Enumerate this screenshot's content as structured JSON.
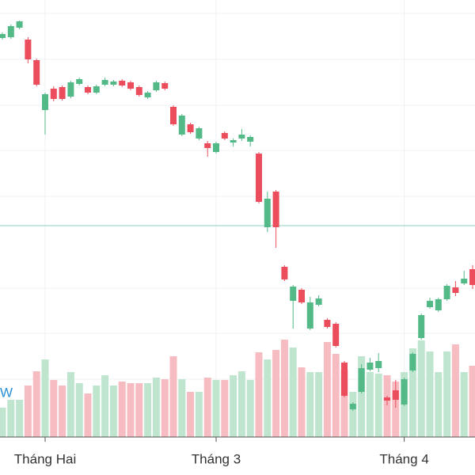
{
  "chart_data": {
    "type": "candlestick",
    "annotation": "W",
    "categories": [
      null,
      null,
      null,
      null,
      null,
      "Tháng Hai",
      null,
      null,
      null,
      null,
      null,
      null,
      null,
      null,
      null,
      null,
      null,
      null,
      null,
      null,
      null,
      null,
      null,
      null,
      null,
      "Tháng 3",
      null,
      null,
      null,
      null,
      null,
      null,
      null,
      null,
      null,
      null,
      null,
      null,
      null,
      null,
      null,
      null,
      null,
      null,
      null,
      null,
      null,
      "Tháng 4",
      null,
      null,
      null,
      null,
      null,
      null,
      null,
      null
    ],
    "open": [
      512,
      513,
      525,
      510,
      484,
      421,
      448,
      450,
      438,
      454,
      450,
      443,
      453,
      453,
      458,
      456,
      450,
      437,
      446,
      455,
      425,
      390,
      403,
      385,
      379,
      368,
      392,
      380,
      385,
      381,
      366,
      273,
      318,
      223,
      180,
      194,
      145,
      175,
      156,
      151,
      102,
      43,
      65,
      93,
      95,
      58,
      67,
      49,
      92,
      133,
      172,
      168,
      182,
      197,
      202,
      220
    ],
    "high": [
      519,
      529,
      534,
      513,
      486,
      443,
      451,
      452,
      458,
      462,
      452,
      453,
      462,
      459,
      460,
      458,
      452,
      445,
      458,
      457,
      427,
      416,
      405,
      400,
      382,
      381,
      394,
      385,
      397,
      389,
      368,
      318,
      320,
      225,
      200,
      196,
      185,
      187,
      158,
      153,
      104,
      52,
      100,
      108,
      114,
      60,
      80,
      83,
      115,
      164,
      184,
      184,
      201,
      205,
      218,
      225
    ],
    "low": [
      510,
      511,
      523,
      480,
      451,
      390,
      432,
      433,
      436,
      452,
      441,
      441,
      451,
      451,
      450,
      446,
      438,
      435,
      444,
      446,
      401,
      388,
      391,
      383,
      362,
      366,
      383,
      375,
      382,
      375,
      303,
      267,
      247,
      205,
      145,
      176,
      143,
      173,
      145,
      121,
      58,
      41,
      63,
      91,
      90,
      48,
      45,
      47,
      90,
      131,
      170,
      166,
      180,
      186,
      200,
      195
    ],
    "close": [
      517,
      527,
      533,
      485,
      453,
      441,
      435,
      435,
      456,
      460,
      443,
      451,
      459,
      457,
      452,
      448,
      440,
      443,
      456,
      448,
      403,
      414,
      393,
      398,
      373,
      379,
      385,
      383,
      390,
      387,
      305,
      309,
      273,
      207,
      198,
      178,
      178,
      183,
      147,
      123,
      60,
      50,
      95,
      102,
      104,
      54,
      55,
      81,
      113,
      162,
      180,
      182,
      199,
      190,
      208,
      200
    ],
    "volume": [
      37,
      47,
      47,
      65,
      83,
      98,
      72,
      65,
      82,
      68,
      55,
      65,
      78,
      65,
      70,
      68,
      68,
      68,
      75,
      73,
      102,
      73,
      57,
      57,
      75,
      72,
      72,
      78,
      83,
      72,
      107,
      98,
      110,
      123,
      113,
      88,
      82,
      82,
      120,
      105,
      85,
      57,
      102,
      82,
      80,
      78,
      70,
      82,
      112,
      122,
      108,
      82,
      108,
      117,
      82,
      90
    ],
    "ylim": [
      0,
      560
    ],
    "volume_lim": [
      0,
      552
    ],
    "up_color": "#53b987",
    "down_color": "#eb4d5c",
    "volume_up_color": "#bfe5cf",
    "volume_down_color": "#f6bcc2"
  }
}
